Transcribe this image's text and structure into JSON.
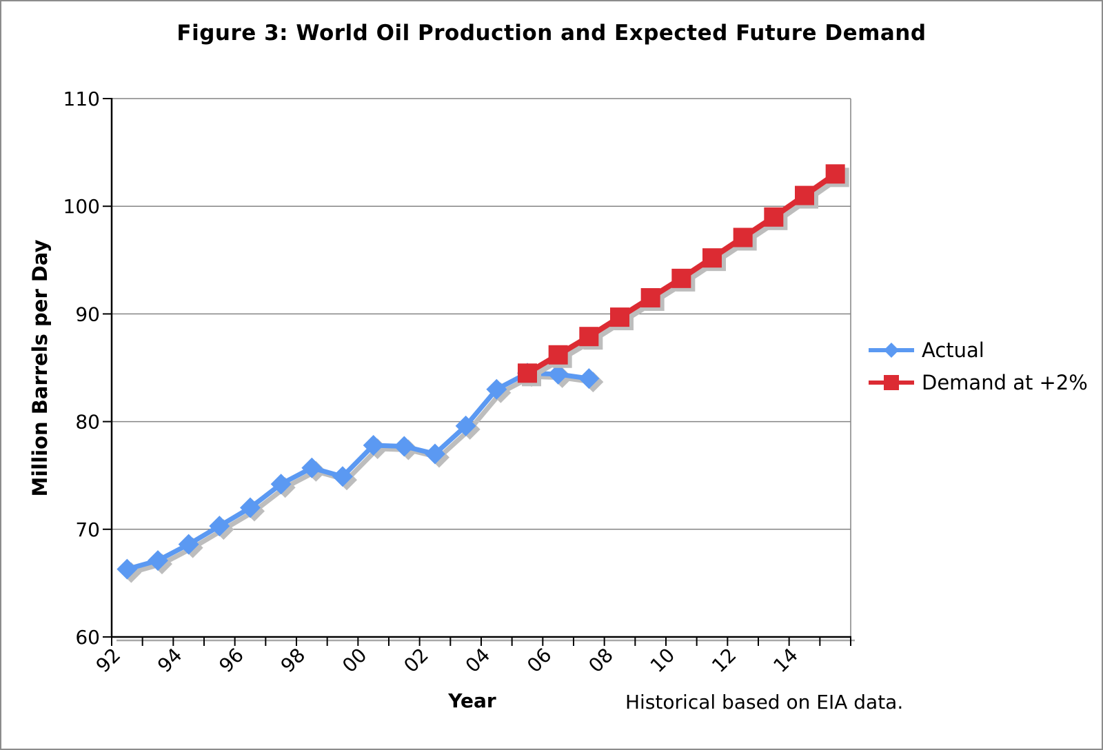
{
  "chart_data": {
    "type": "line",
    "title": "Figure 3: World Oil Production and Expected Future Demand",
    "xlabel": "Year",
    "ylabel": "Million Barrels per Day",
    "footnote": "Historical based on EIA data.",
    "ylim": [
      60,
      110
    ],
    "y_ticks": [
      60,
      70,
      80,
      90,
      100,
      110
    ],
    "x_year_range": [
      1992,
      2015
    ],
    "x_tick_labels": [
      "92",
      "94",
      "96",
      "98",
      "00",
      "02",
      "04",
      "06",
      "08",
      "10",
      "12",
      "14"
    ],
    "x_label_step_years": 2,
    "grid": "horizontal gridlines on, vertical off",
    "legend_position": "right-middle, no border",
    "colors": {
      "actual": "#5B99F2",
      "demand": "#DC2B33",
      "shadow": "#BDBDBD",
      "gridline": "#848484",
      "axis": "#000000"
    },
    "series": [
      {
        "name": "Actual",
        "marker": "diamond",
        "color_key": "actual",
        "years": [
          1992,
          1993,
          1994,
          1995,
          1996,
          1997,
          1998,
          1999,
          2000,
          2001,
          2002,
          2003,
          2004,
          2005,
          2006,
          2007
        ],
        "values": [
          66.3,
          67.1,
          68.6,
          70.3,
          72.0,
          74.2,
          75.7,
          74.9,
          77.8,
          77.7,
          77.0,
          79.6,
          83.0,
          84.5,
          84.4,
          84.0
        ]
      },
      {
        "name": "Demand at +2%",
        "marker": "square",
        "color_key": "demand",
        "years": [
          2005,
          2006,
          2007,
          2008,
          2009,
          2010,
          2011,
          2012,
          2013,
          2014,
          2015
        ],
        "values": [
          84.5,
          86.2,
          87.9,
          89.7,
          91.5,
          93.3,
          95.2,
          97.1,
          99.0,
          101.0,
          103.0
        ]
      }
    ]
  }
}
